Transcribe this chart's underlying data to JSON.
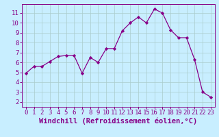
{
  "x": [
    0,
    1,
    2,
    3,
    4,
    5,
    6,
    7,
    8,
    9,
    10,
    11,
    12,
    13,
    14,
    15,
    16,
    17,
    18,
    19,
    20,
    21,
    22,
    23
  ],
  "y": [
    4.9,
    5.6,
    5.6,
    6.1,
    6.6,
    6.7,
    6.7,
    4.9,
    6.5,
    6.0,
    7.4,
    7.4,
    9.2,
    10.0,
    10.6,
    10.0,
    11.4,
    11.0,
    9.3,
    8.5,
    8.5,
    6.3,
    3.0,
    2.5
  ],
  "line_color": "#880088",
  "marker": "D",
  "markersize": 2.2,
  "linewidth": 0.9,
  "bg_color": "#c8eeff",
  "grid_color": "#aacccc",
  "xlabel": "Windchill (Refroidissement éolien,°C)",
  "xlabel_color": "#880088",
  "xlim": [
    -0.5,
    23.5
  ],
  "ylim": [
    1.5,
    11.9
  ],
  "yticks": [
    2,
    3,
    4,
    5,
    6,
    7,
    8,
    9,
    10,
    11
  ],
  "xticks": [
    0,
    1,
    2,
    3,
    4,
    5,
    6,
    7,
    8,
    9,
    10,
    11,
    12,
    13,
    14,
    15,
    16,
    17,
    18,
    19,
    20,
    21,
    22,
    23
  ],
  "tick_color": "#880088",
  "tick_fontsize": 6.5,
  "xlabel_fontsize": 7.5
}
